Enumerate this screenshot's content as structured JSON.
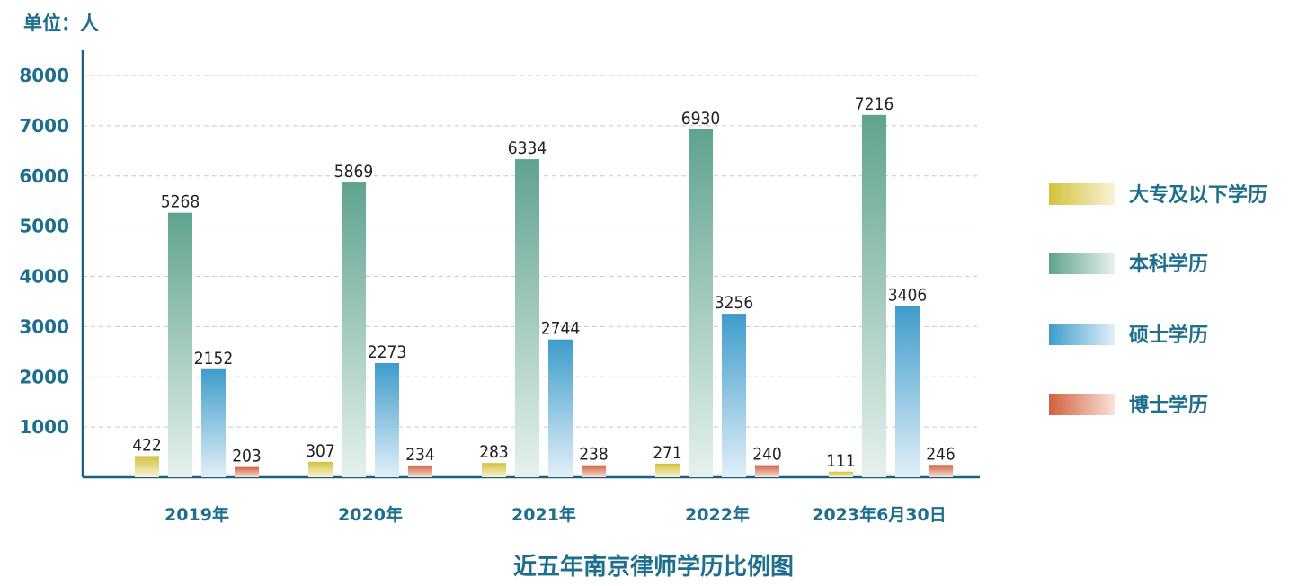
{
  "unit_label": "单位：人",
  "chart_data": {
    "type": "bar",
    "title": "近五年南京律师学历比例图",
    "xlabel": "",
    "ylabel": "",
    "categories": [
      "2019年",
      "2020年",
      "2021年",
      "2022年",
      "2023年6月30日"
    ],
    "ylim": [
      0,
      8500
    ],
    "yticks": [
      1000,
      2000,
      3000,
      4000,
      5000,
      6000,
      7000,
      8000
    ],
    "grid": true,
    "legend_position": "right",
    "series": [
      {
        "name": "大专及以下学历",
        "values": [
          422,
          307,
          283,
          271,
          111
        ],
        "color": "#d4c23a",
        "color_light": "#f7f3d6"
      },
      {
        "name": "本科学历",
        "values": [
          5268,
          5869,
          6334,
          6930,
          7216
        ],
        "color": "#5fa38e",
        "color_light": "#e6f1ed"
      },
      {
        "name": "硕士学历",
        "values": [
          2152,
          2273,
          2744,
          3256,
          3406
        ],
        "color": "#3e9ccb",
        "color_light": "#e1eff8"
      },
      {
        "name": "博士学历",
        "values": [
          203,
          234,
          238,
          240,
          246
        ],
        "color": "#d3603f",
        "color_light": "#f8e2da"
      }
    ]
  }
}
